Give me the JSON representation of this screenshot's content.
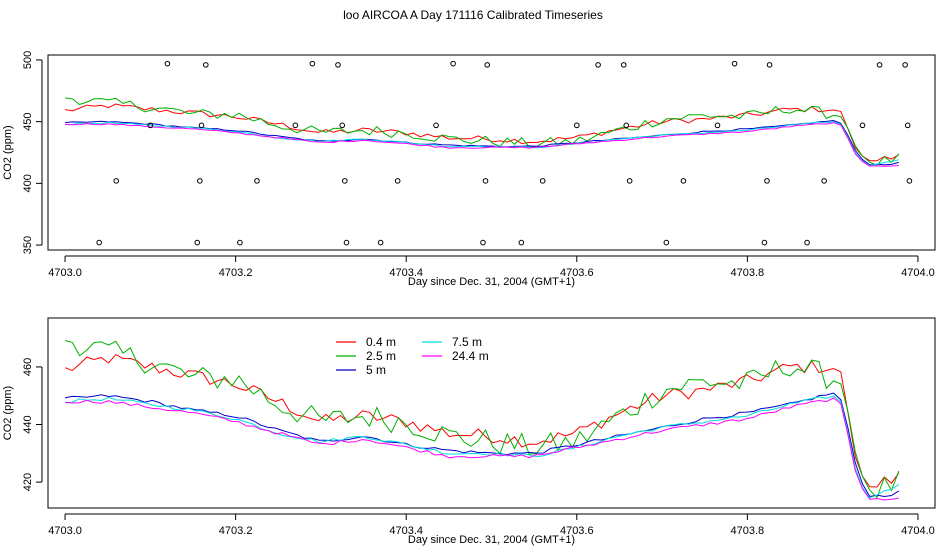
{
  "title": "loo AIRCOA A  Day 171116  Calibrated Timeseries",
  "chart_data": [
    {
      "type": "line+scatter",
      "xlabel": "Day since Dec. 31, 2004 (GMT+1)",
      "ylabel": "CO2 (ppm)",
      "xlim": [
        4702.98,
        4704.02
      ],
      "ylim": [
        346,
        504
      ],
      "xticks": [
        "4703.0",
        "4703.2",
        "4703.4",
        "4703.6",
        "4703.8",
        "4704.0"
      ],
      "yticks": [
        "350",
        "400",
        "450",
        "500"
      ],
      "xtick_values": [
        4703.0,
        4703.2,
        4703.4,
        4703.6,
        4703.8,
        4704.0
      ],
      "ytick_values": [
        350,
        400,
        450,
        500
      ],
      "calibration_points": {
        "x": [
          4703.04,
          4703.06,
          4703.1,
          4703.12,
          4703.155,
          4703.158,
          4703.16,
          4703.165,
          4703.205,
          4703.225,
          4703.27,
          4703.29,
          4703.32,
          4703.325,
          4703.328,
          4703.33,
          4703.37,
          4703.39,
          4703.435,
          4703.455,
          4703.49,
          4703.493,
          4703.495,
          4703.535,
          4703.56,
          4703.6,
          4703.625,
          4703.655,
          4703.658,
          4703.662,
          4703.705,
          4703.725,
          4703.765,
          4703.785,
          4703.82,
          4703.823,
          4703.826,
          4703.87,
          4703.89,
          4703.935,
          4703.955,
          4703.985,
          4703.988,
          4703.99
        ],
        "y": [
          352,
          402,
          447,
          497,
          352,
          402,
          447,
          496,
          352,
          402,
          447,
          497,
          496,
          447,
          402,
          352,
          352,
          402,
          447,
          497,
          352,
          402,
          496,
          352,
          402,
          447,
          496,
          496,
          447,
          402,
          352,
          402,
          447,
          497,
          352,
          402,
          496,
          352,
          402,
          447,
          496,
          496,
          447,
          402
        ]
      }
    },
    {
      "type": "line",
      "xlabel": "Day since Dec. 31, 2004 (GMT+1)",
      "ylabel": "CO2 (ppm)",
      "xlim": [
        4702.98,
        4704.02
      ],
      "ylim": [
        411,
        477
      ],
      "xticks": [
        "4703.0",
        "4703.2",
        "4703.4",
        "4703.6",
        "4703.8",
        "4704.0"
      ],
      "yticks": [
        "420",
        "440",
        "460"
      ],
      "xtick_values": [
        4703.0,
        4703.2,
        4703.4,
        4703.6,
        4703.8,
        4704.0
      ],
      "ytick_values": [
        420,
        440,
        460
      ],
      "legend_position": "top-center",
      "series": [
        {
          "name": "0.4 m",
          "color": "#ff0000",
          "key": "s04"
        },
        {
          "name": "2.5 m",
          "color": "#00b000",
          "key": "s25"
        },
        {
          "name": "5 m",
          "color": "#0000cc",
          "key": "s5"
        },
        {
          "name": "7.5 m",
          "color": "#00dddd",
          "key": "s75"
        },
        {
          "name": "24.4 m",
          "color": "#ff00ff",
          "key": "s244"
        }
      ],
      "profiles": {
        "s04": [
          [
            4703.0,
            459
          ],
          [
            4703.05,
            463
          ],
          [
            4703.1,
            460
          ],
          [
            4703.15,
            457
          ],
          [
            4703.2,
            454
          ],
          [
            4703.25,
            448
          ],
          [
            4703.3,
            441
          ],
          [
            4703.35,
            443
          ],
          [
            4703.4,
            441
          ],
          [
            4703.45,
            437
          ],
          [
            4703.5,
            436
          ],
          [
            4703.55,
            434
          ],
          [
            4703.6,
            437
          ],
          [
            4703.65,
            444
          ],
          [
            4703.7,
            450
          ],
          [
            4703.75,
            452
          ],
          [
            4703.8,
            455
          ],
          [
            4703.85,
            460
          ],
          [
            4703.9,
            460
          ],
          [
            4703.912,
            456
          ],
          [
            4703.925,
            430
          ],
          [
            4703.94,
            418
          ],
          [
            4703.96,
            420
          ],
          [
            4703.98,
            422
          ]
        ],
        "s25": [
          [
            4703.0,
            470
          ],
          [
            4703.05,
            465
          ],
          [
            4703.1,
            462
          ],
          [
            4703.15,
            456
          ],
          [
            4703.2,
            456
          ],
          [
            4703.25,
            447
          ],
          [
            4703.3,
            441
          ],
          [
            4703.35,
            443
          ],
          [
            4703.4,
            441
          ],
          [
            4703.45,
            436
          ],
          [
            4703.5,
            434
          ],
          [
            4703.55,
            432
          ],
          [
            4703.6,
            434
          ],
          [
            4703.65,
            443
          ],
          [
            4703.7,
            452
          ],
          [
            4703.75,
            455
          ],
          [
            4703.8,
            454
          ],
          [
            4703.85,
            461
          ],
          [
            4703.9,
            456
          ],
          [
            4703.912,
            455
          ],
          [
            4703.925,
            432
          ],
          [
            4703.94,
            417
          ],
          [
            4703.96,
            418
          ],
          [
            4703.98,
            420
          ]
        ],
        "s5": [
          [
            4703.0,
            449
          ],
          [
            4703.05,
            450
          ],
          [
            4703.1,
            448
          ],
          [
            4703.15,
            445
          ],
          [
            4703.2,
            443
          ],
          [
            4703.25,
            438
          ],
          [
            4703.3,
            434
          ],
          [
            4703.35,
            436
          ],
          [
            4703.4,
            433
          ],
          [
            4703.45,
            431
          ],
          [
            4703.5,
            430
          ],
          [
            4703.55,
            430
          ],
          [
            4703.6,
            433
          ],
          [
            4703.65,
            436
          ],
          [
            4703.7,
            439
          ],
          [
            4703.75,
            442
          ],
          [
            4703.8,
            444
          ],
          [
            4703.85,
            447
          ],
          [
            4703.9,
            451
          ],
          [
            4703.912,
            448
          ],
          [
            4703.925,
            428
          ],
          [
            4703.94,
            415
          ],
          [
            4703.96,
            415
          ],
          [
            4703.98,
            417
          ]
        ],
        "s75": [
          [
            4703.0,
            448
          ],
          [
            4703.05,
            449
          ],
          [
            4703.1,
            447
          ],
          [
            4703.15,
            445
          ],
          [
            4703.2,
            442
          ],
          [
            4703.25,
            437
          ],
          [
            4703.3,
            434
          ],
          [
            4703.35,
            436
          ],
          [
            4703.4,
            433
          ],
          [
            4703.45,
            430
          ],
          [
            4703.5,
            430
          ],
          [
            4703.55,
            429
          ],
          [
            4703.6,
            432
          ],
          [
            4703.65,
            436
          ],
          [
            4703.7,
            439
          ],
          [
            4703.75,
            441
          ],
          [
            4703.8,
            443
          ],
          [
            4703.85,
            447
          ],
          [
            4703.9,
            450
          ],
          [
            4703.912,
            447
          ],
          [
            4703.925,
            426
          ],
          [
            4703.94,
            414
          ],
          [
            4703.96,
            417
          ],
          [
            4703.98,
            419
          ]
        ],
        "s244": [
          [
            4703.0,
            448
          ],
          [
            4703.05,
            448
          ],
          [
            4703.1,
            446
          ],
          [
            4703.15,
            444
          ],
          [
            4703.2,
            441
          ],
          [
            4703.25,
            437
          ],
          [
            4703.3,
            433
          ],
          [
            4703.35,
            435
          ],
          [
            4703.4,
            432
          ],
          [
            4703.45,
            429
          ],
          [
            4703.5,
            429
          ],
          [
            4703.55,
            429
          ],
          [
            4703.6,
            432
          ],
          [
            4703.65,
            435
          ],
          [
            4703.7,
            438
          ],
          [
            4703.75,
            440
          ],
          [
            4703.8,
            442
          ],
          [
            4703.85,
            446
          ],
          [
            4703.9,
            449
          ],
          [
            4703.912,
            446
          ],
          [
            4703.925,
            425
          ],
          [
            4703.94,
            414
          ],
          [
            4703.96,
            414
          ],
          [
            4703.98,
            415
          ]
        ]
      }
    }
  ]
}
